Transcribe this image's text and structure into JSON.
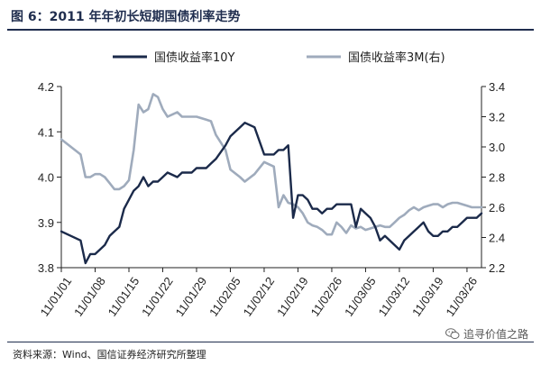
{
  "header": {
    "title": "图 6：2011 年年初长短期国债利率走势"
  },
  "footer": {
    "source": "资料来源：Wind、国信证券经济研究所整理",
    "watermark": "追寻价值之路",
    "watermark_icon": "wechat-icon"
  },
  "colors": {
    "series1": "#1b2a4a",
    "series2": "#9fabbc"
  },
  "chart_data": {
    "type": "line",
    "title": "图 6：2011 年年初长短期国债利率走势",
    "legend": {
      "placement": "top-center"
    },
    "grid": false,
    "x_ticks": [
      "11/01/01",
      "11/01/08",
      "11/01/15",
      "11/01/22",
      "11/01/29",
      "11/02/05",
      "11/02/12",
      "11/02/19",
      "11/02/26",
      "11/03/05",
      "11/03/12",
      "11/03/19",
      "11/03/26"
    ],
    "x_range": [
      0,
      87
    ],
    "y_left": {
      "range": [
        3.8,
        4.2
      ],
      "ticks": [
        "3.8",
        "3.9",
        "4.0",
        "4.1",
        "4.2"
      ]
    },
    "y_right": {
      "range": [
        2.2,
        3.4
      ],
      "ticks": [
        "2.2",
        "2.4",
        "2.6",
        "2.8",
        "3.0",
        "3.2",
        "3.4"
      ]
    },
    "series": [
      {
        "name": "国债收益率10Y",
        "axis": "left",
        "x": [
          0,
          2,
          4,
          5,
          6,
          7,
          8,
          9,
          10,
          11,
          12,
          13,
          14,
          15,
          16,
          17,
          18,
          19,
          20,
          21,
          22,
          24,
          25,
          27,
          28,
          30,
          31,
          32,
          34,
          35,
          37,
          38,
          40,
          42,
          44,
          45,
          46,
          47,
          48,
          49,
          50,
          51,
          52,
          53,
          54,
          55,
          56,
          57,
          58,
          59,
          60,
          61,
          62,
          63,
          64,
          65,
          66,
          67,
          68,
          69,
          70,
          71,
          72,
          73,
          74,
          75,
          76,
          77,
          78,
          79,
          80,
          81,
          82,
          83,
          84,
          85,
          86,
          87
        ],
        "y": [
          3.88,
          3.87,
          3.86,
          3.81,
          3.83,
          3.83,
          3.84,
          3.85,
          3.87,
          3.88,
          3.89,
          3.93,
          3.95,
          3.97,
          3.98,
          4.0,
          3.98,
          3.99,
          3.99,
          4.0,
          4.01,
          4.0,
          4.01,
          4.01,
          4.02,
          4.02,
          4.03,
          4.04,
          4.07,
          4.09,
          4.11,
          4.12,
          4.11,
          4.05,
          4.05,
          4.06,
          4.06,
          4.07,
          3.91,
          3.96,
          3.96,
          3.95,
          3.93,
          3.93,
          3.92,
          3.93,
          3.93,
          3.94,
          3.94,
          3.94,
          3.94,
          3.89,
          3.93,
          3.92,
          3.91,
          3.89,
          3.86,
          3.87,
          3.86,
          3.85,
          3.84,
          3.86,
          3.87,
          3.88,
          3.89,
          3.9,
          3.88,
          3.87,
          3.87,
          3.88,
          3.88,
          3.89,
          3.89,
          3.9,
          3.91,
          3.91,
          3.91,
          3.92
        ]
      },
      {
        "name": "国债收益率3M(右)",
        "axis": "right",
        "x": [
          0,
          2,
          4,
          5,
          6,
          7,
          8,
          9,
          10,
          11,
          12,
          13,
          14,
          15,
          16,
          17,
          18,
          19,
          20,
          21,
          22,
          24,
          25,
          27,
          28,
          30,
          31,
          32,
          34,
          35,
          37,
          38,
          40,
          42,
          44,
          45,
          46,
          47,
          48,
          49,
          50,
          51,
          52,
          53,
          54,
          55,
          56,
          57,
          58,
          59,
          60,
          61,
          62,
          63,
          64,
          65,
          66,
          67,
          68,
          69,
          70,
          71,
          72,
          73,
          74,
          75,
          76,
          77,
          78,
          79,
          80,
          81,
          82,
          83,
          84,
          85,
          86,
          87
        ],
        "y": [
          3.05,
          3.0,
          2.95,
          2.8,
          2.8,
          2.82,
          2.82,
          2.8,
          2.76,
          2.72,
          2.72,
          2.74,
          2.78,
          2.98,
          3.28,
          3.23,
          3.25,
          3.35,
          3.33,
          3.25,
          3.2,
          3.23,
          3.2,
          3.2,
          3.2,
          3.18,
          3.17,
          3.08,
          2.98,
          2.85,
          2.8,
          2.77,
          2.82,
          2.9,
          2.87,
          2.6,
          2.68,
          2.63,
          2.62,
          2.6,
          2.56,
          2.5,
          2.48,
          2.47,
          2.45,
          2.42,
          2.42,
          2.5,
          2.47,
          2.43,
          2.48,
          2.46,
          2.47,
          2.45,
          2.46,
          2.47,
          2.48,
          2.47,
          2.47,
          2.5,
          2.53,
          2.55,
          2.58,
          2.6,
          2.58,
          2.6,
          2.61,
          2.62,
          2.62,
          2.6,
          2.62,
          2.63,
          2.63,
          2.62,
          2.61,
          2.6,
          2.6,
          2.6
        ]
      }
    ]
  }
}
